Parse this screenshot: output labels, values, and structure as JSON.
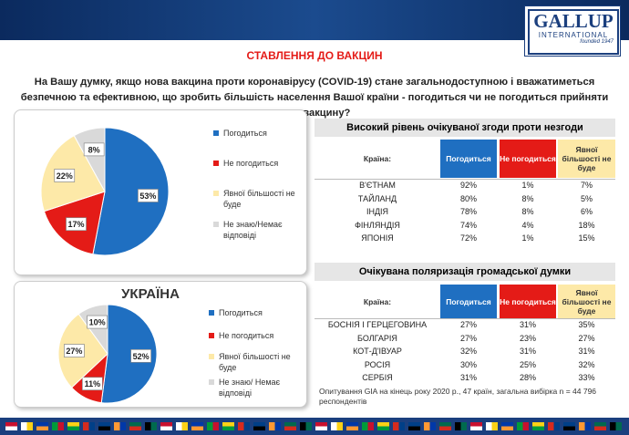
{
  "header": {
    "logo": "GALLUP",
    "logo_sub": "INTERNATIONAL",
    "founded": "founded 1947"
  },
  "title": "СТАВЛЕННЯ ДО ВАКЦИН",
  "question": "На Вашу думку, якщо нова вакцина проти коронавірусу (COVID-19) стане загальнодоступною і вважатиметься безпечною та ефективною, що зробить більшість населення Вашої країни - погодиться чи не погодиться прийняти таку вакцину?",
  "chart_data": [
    {
      "type": "pie",
      "categories": [
        "Погодиться",
        "Не погодиться",
        "Явної більшості не буде",
        "Не знаю/Немає відповіді"
      ],
      "values": [
        53,
        17,
        22,
        8
      ],
      "value_labels": [
        "53%",
        "17%",
        "22%",
        "8%"
      ],
      "colors": [
        "#1f6fc1",
        "#e41b17",
        "#fde9a8",
        "#d9d9d9"
      ]
    },
    {
      "type": "pie",
      "title": "УКРАЇНА",
      "categories": [
        "Погодиться",
        "Не погодиться",
        "Явної більшості не буде",
        "Не знаю/ Немає відповіді"
      ],
      "values": [
        52,
        11,
        27,
        10
      ],
      "value_labels": [
        "52%",
        "11%",
        "27%",
        "10%"
      ],
      "colors": [
        "#1f6fc1",
        "#e41b17",
        "#fde9a8",
        "#d9d9d9"
      ]
    }
  ],
  "tables": [
    {
      "title": "Високий рівень очікуваної згоди проти незгоди",
      "columns": [
        "Країна:",
        "Погодиться",
        "Не погодиться",
        "Явної більшості не буде"
      ],
      "rows": [
        [
          "В'ЄТНАМ",
          "92%",
          "1%",
          "7%"
        ],
        [
          "ТАЙЛАНД",
          "80%",
          "8%",
          "5%"
        ],
        [
          "ІНДІЯ",
          "78%",
          "8%",
          "6%"
        ],
        [
          "ФІНЛЯНДІЯ",
          "74%",
          "4%",
          "18%"
        ],
        [
          "ЯПОНІЯ",
          "72%",
          "1%",
          "15%"
        ]
      ]
    },
    {
      "title": "Очікувана поляризація громадської думки",
      "columns": [
        "Країна:",
        "Погодиться",
        "Не погодиться",
        "Явної більшості не буде"
      ],
      "rows": [
        [
          "БОСНІЯ І ГЕРЦЕГОВИНА",
          "27%",
          "31%",
          "35%"
        ],
        [
          "БОЛГАРІЯ",
          "27%",
          "23%",
          "27%"
        ],
        [
          "КОТ-Д'ІВУАР",
          "32%",
          "31%",
          "31%"
        ],
        [
          "РОСІЯ",
          "30%",
          "25%",
          "32%"
        ],
        [
          "СЕРБІЯ",
          "31%",
          "28%",
          "33%"
        ]
      ]
    }
  ],
  "footnote": "Опитування GIA на кінець року 2020 р., 47 країн, загальна вибірка n = 44 796 респондентів"
}
